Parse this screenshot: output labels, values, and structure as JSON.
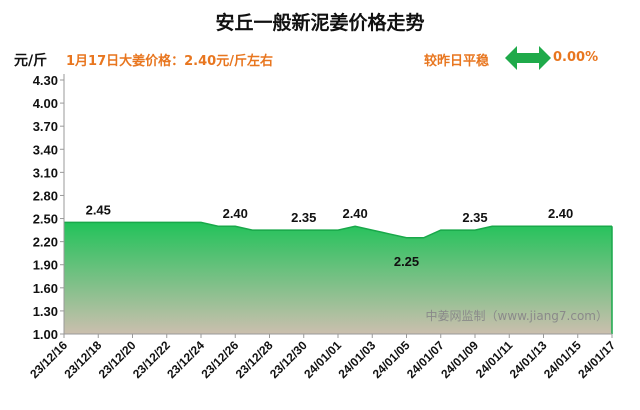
{
  "header": {
    "title": "安丘一般新泥姜价格走势",
    "unit": "元/斤",
    "price_text": "1月17日大姜价格：2.40元/斤左右",
    "compare_text": "较昨日平稳",
    "change_pct": "0.00%"
  },
  "watermark": "中姜网监制（www.jiang7.com）",
  "colors": {
    "accent": "#e8761f",
    "fill_top": "#22c25a",
    "fill_bottom": "#cbbfae",
    "line": "#19a84a"
  },
  "chart_data": {
    "type": "area",
    "title": "安丘一般新泥姜价格走势",
    "ylabel": "元/斤",
    "ylim": [
      1.0,
      4.3
    ],
    "yticks": [
      "1.00",
      "1.30",
      "1.60",
      "1.90",
      "2.20",
      "2.50",
      "2.80",
      "3.10",
      "3.40",
      "3.70",
      "4.00",
      "4.30"
    ],
    "xticks": [
      "23/12/16",
      "23/12/18",
      "23/12/20",
      "23/12/22",
      "23/12/24",
      "23/12/26",
      "23/12/28",
      "23/12/30",
      "24/01/01",
      "24/01/03",
      "24/01/05",
      "24/01/07",
      "24/01/09",
      "24/01/11",
      "24/01/13",
      "24/01/15",
      "24/01/17"
    ],
    "x": [
      "23/12/16",
      "23/12/17",
      "23/12/18",
      "23/12/19",
      "23/12/20",
      "23/12/21",
      "23/12/22",
      "23/12/23",
      "23/12/24",
      "23/12/25",
      "23/12/26",
      "23/12/27",
      "23/12/28",
      "23/12/29",
      "23/12/30",
      "23/12/31",
      "24/01/01",
      "24/01/02",
      "24/01/03",
      "24/01/04",
      "24/01/05",
      "24/01/06",
      "24/01/07",
      "24/01/08",
      "24/01/09",
      "24/01/10",
      "24/01/11",
      "24/01/12",
      "24/01/13",
      "24/01/14",
      "24/01/15",
      "24/01/16",
      "24/01/17"
    ],
    "values": [
      2.45,
      2.45,
      2.45,
      2.45,
      2.45,
      2.45,
      2.45,
      2.45,
      2.45,
      2.4,
      2.4,
      2.35,
      2.35,
      2.35,
      2.35,
      2.35,
      2.35,
      2.4,
      2.35,
      2.3,
      2.25,
      2.25,
      2.35,
      2.35,
      2.35,
      2.4,
      2.4,
      2.4,
      2.4,
      2.4,
      2.4,
      2.4,
      2.4
    ],
    "data_labels": [
      {
        "x": "23/12/18",
        "text": "2.45"
      },
      {
        "x": "23/12/26",
        "text": "2.40"
      },
      {
        "x": "23/12/30",
        "text": "2.35"
      },
      {
        "x": "24/01/02",
        "text": "2.40"
      },
      {
        "x": "24/01/05",
        "text": "2.25"
      },
      {
        "x": "24/01/09",
        "text": "2.35"
      },
      {
        "x": "24/01/14",
        "text": "2.40"
      }
    ]
  }
}
